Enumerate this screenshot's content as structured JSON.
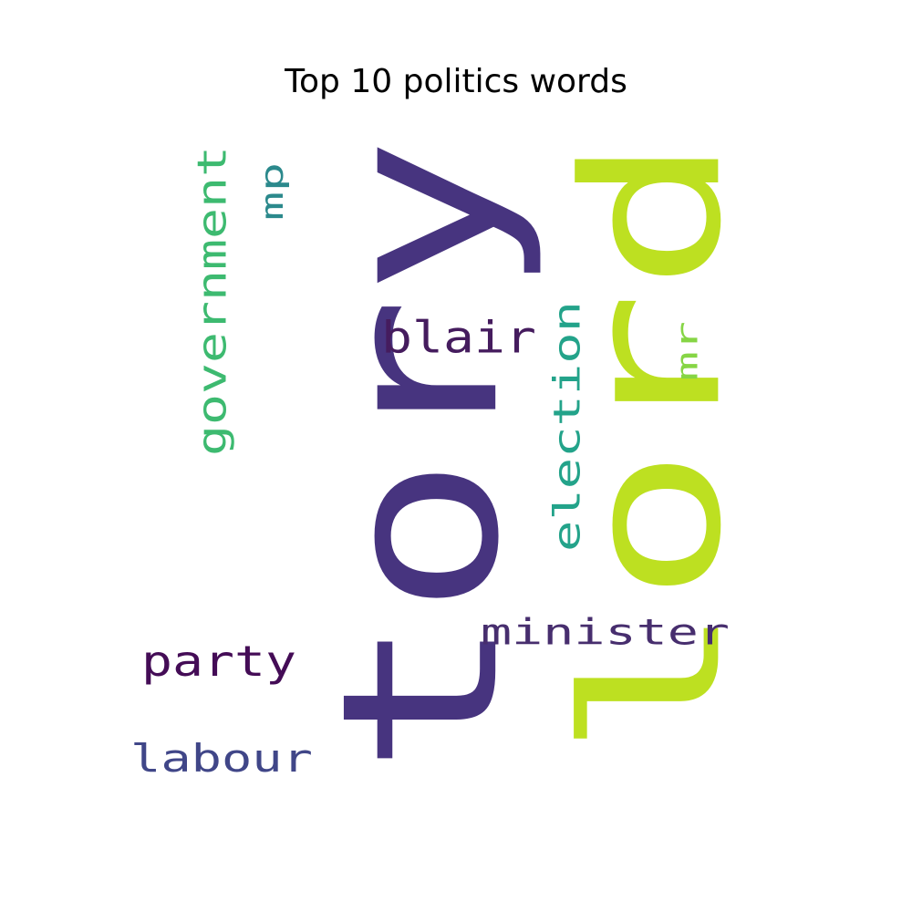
{
  "title": "Top 10 politics words",
  "chart_data": {
    "type": "wordcloud",
    "title": "Top 10 politics words",
    "words": [
      {
        "text": "tory",
        "color": "#47347f",
        "orientation": "vertical"
      },
      {
        "text": "lord",
        "color": "#bde021",
        "orientation": "vertical"
      },
      {
        "text": "government",
        "color": "#3dba70",
        "orientation": "vertical"
      },
      {
        "text": "mp",
        "color": "#2b898c",
        "orientation": "vertical"
      },
      {
        "text": "blair",
        "color": "#451c5e",
        "orientation": "horizontal"
      },
      {
        "text": "election",
        "color": "#23a38a",
        "orientation": "vertical"
      },
      {
        "text": "mr",
        "color": "#86d545",
        "orientation": "vertical"
      },
      {
        "text": "minister",
        "color": "#472e6e",
        "orientation": "horizontal"
      },
      {
        "text": "party",
        "color": "#440c56",
        "orientation": "horizontal"
      },
      {
        "text": "labour",
        "color": "#404688",
        "orientation": "horizontal"
      }
    ]
  }
}
